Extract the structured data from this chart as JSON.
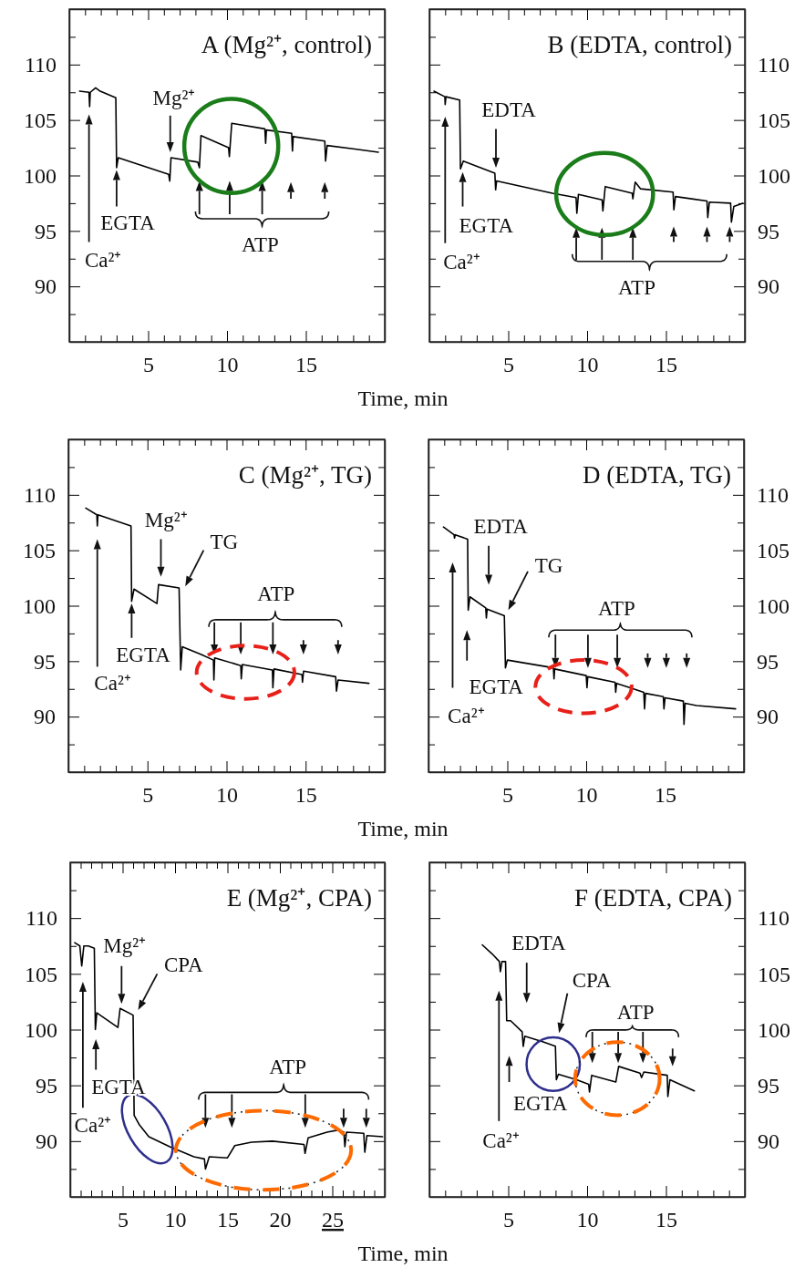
{
  "chart_data": [
    {
      "type": "line",
      "title": "A (Mg²⁺, control)",
      "xlabel": "Time, min",
      "xlim": [
        0,
        20
      ],
      "ylim": [
        85,
        115
      ],
      "xticks": [
        {
          "value": 1,
          "label": null
        },
        {
          "value": 2,
          "label": null
        },
        {
          "value": 3,
          "label": null
        },
        {
          "value": 4,
          "label": null
        },
        5,
        {
          "value": 6,
          "label": null
        },
        {
          "value": 7,
          "label": null
        },
        {
          "value": 8,
          "label": null
        },
        {
          "value": 9,
          "label": null
        },
        10,
        {
          "value": 11,
          "label": null
        },
        {
          "value": 12,
          "label": null
        },
        {
          "value": 13,
          "label": null
        },
        {
          "value": 14,
          "label": null
        },
        15,
        {
          "value": 16,
          "label": null
        },
        {
          "value": 17,
          "label": null
        },
        {
          "value": 18,
          "label": null
        },
        {
          "value": 19,
          "label": null
        }
      ],
      "yticks": [
        {
          "value": 87.5,
          "label": null
        },
        90,
        {
          "value": 92.5,
          "label": null
        },
        95,
        {
          "value": 97.5,
          "label": null
        },
        100,
        {
          "value": 102.5,
          "label": null
        },
        105,
        {
          "value": 107.5,
          "label": null
        },
        110,
        {
          "value": 112.5,
          "label": null
        }
      ],
      "series": [
        {
          "color": "#000000",
          "x": [
            0.65,
            1.25,
            1.29,
            1.33,
            1.67,
            1.96,
            2.95,
            3.0,
            3.1,
            6.3,
            6.37,
            6.45,
            8.15,
            8.25,
            8.35,
            10.1,
            10.15,
            10.3,
            12.4,
            12.45,
            12.5,
            14.1,
            14.15,
            14.2,
            16.2,
            16.25,
            16.35,
            18,
            19.6
          ],
          "values": [
            107.6,
            107.5,
            106.2,
            107.5,
            107.9,
            107.6,
            107.0,
            100.7,
            101.6,
            100.1,
            99.5,
            101.6,
            101.2,
            100.7,
            103.6,
            102.5,
            101.7,
            104.7,
            104.2,
            102.9,
            104.1,
            103.8,
            102.2,
            103.5,
            103.1,
            101.3,
            102.7,
            102.4,
            102.1
          ]
        }
      ],
      "annotations": [
        "Ca²⁺",
        "EGTA",
        "Mg²⁺",
        "ATP"
      ]
    },
    {
      "type": "line",
      "title": "B (EDTA, control)",
      "xlim": [
        0,
        20
      ],
      "ylim": [
        85,
        115
      ],
      "xticks": [
        {
          "value": 1,
          "label": null
        },
        {
          "value": 2,
          "label": null
        },
        {
          "value": 3,
          "label": null
        },
        {
          "value": 4,
          "label": null
        },
        5,
        {
          "value": 6,
          "label": null
        },
        {
          "value": 7,
          "label": null
        },
        {
          "value": 8,
          "label": null
        },
        {
          "value": 9,
          "label": null
        },
        10,
        {
          "value": 11,
          "label": null
        },
        {
          "value": 12,
          "label": null
        },
        {
          "value": 13,
          "label": null
        },
        {
          "value": 14,
          "label": null
        },
        15,
        {
          "value": 16,
          "label": null
        },
        {
          "value": 17,
          "label": null
        },
        {
          "value": 18,
          "label": null
        },
        {
          "value": 19,
          "label": null
        }
      ],
      "yticks": [
        {
          "value": 87.5,
          "label": null
        },
        90,
        {
          "value": 92.5,
          "label": null
        },
        95,
        {
          "value": 97.5,
          "label": null
        },
        100,
        {
          "value": 102.5,
          "label": null
        },
        105,
        {
          "value": 107.5,
          "label": null
        },
        110,
        {
          "value": 112.5,
          "label": null
        }
      ],
      "series": [
        {
          "color": "#000000",
          "x": [
            0.29,
            0.98,
            1.0,
            1.05,
            1.92,
            1.97,
            2.15,
            4.15,
            4.2,
            4.26,
            7.8,
            9.3,
            9.35,
            9.45,
            10.95,
            11.0,
            11.15,
            12.86,
            12.9,
            13.05,
            13.38,
            15.45,
            15.5,
            15.6,
            17.6,
            17.65,
            17.75,
            19.1,
            19.15,
            19.3,
            19.87
          ],
          "values": [
            107.6,
            107.1,
            106.4,
            107.1,
            106.8,
            100.6,
            101.3,
            100.2,
            98.7,
            99.5,
            98.4,
            98.0,
            96.6,
            98.3,
            97.8,
            96.8,
            99.0,
            98.4,
            97.9,
            99.4,
            98.8,
            98.5,
            96.9,
            98.1,
            97.7,
            96.2,
            97.6,
            97.5,
            95.8,
            97.2,
            97.5
          ]
        }
      ],
      "annotations": [
        "Ca²⁺",
        "EGTA",
        "EDTA",
        "ATP"
      ]
    },
    {
      "type": "line",
      "title": "C (Mg²⁺, TG)",
      "xlabel": "Time, min",
      "xlim": [
        0,
        20
      ],
      "ylim": [
        85,
        115
      ],
      "xticks": [
        {
          "value": 1,
          "label": null
        },
        {
          "value": 2,
          "label": null
        },
        {
          "value": 3,
          "label": null
        },
        {
          "value": 4,
          "label": null
        },
        5,
        {
          "value": 6,
          "label": null
        },
        {
          "value": 7,
          "label": null
        },
        {
          "value": 8,
          "label": null
        },
        {
          "value": 9,
          "label": null
        },
        10,
        {
          "value": 11,
          "label": null
        },
        {
          "value": 12,
          "label": null
        },
        {
          "value": 13,
          "label": null
        },
        {
          "value": 14,
          "label": null
        },
        15,
        {
          "value": 16,
          "label": null
        },
        {
          "value": 17,
          "label": null
        },
        {
          "value": 18,
          "label": null
        },
        {
          "value": 19,
          "label": null
        }
      ],
      "yticks": [
        {
          "value": 87.5,
          "label": null
        },
        90,
        {
          "value": 92.5,
          "label": null
        },
        95,
        {
          "value": 97.5,
          "label": null
        },
        100,
        {
          "value": 102.5,
          "label": null
        },
        105,
        {
          "value": 107.5,
          "label": null
        },
        110,
        {
          "value": 112.5,
          "label": null
        }
      ],
      "series": [
        {
          "color": "#000000",
          "x": [
            1.1,
            1.8,
            1.83,
            1.87,
            3.96,
            4.0,
            4.15,
            5.6,
            5.7,
            7.0,
            7.1,
            7.2,
            8.4,
            9.17,
            9.2,
            9.25,
            10.9,
            10.93,
            11.0,
            12.9,
            12.93,
            13.0,
            14.77,
            14.8,
            14.87,
            16.9,
            16.95,
            17.05,
            19.0
          ],
          "values": [
            108.8,
            108.2,
            107.2,
            108.2,
            107.2,
            100.4,
            101.5,
            100.2,
            101.9,
            101.6,
            94.2,
            96.3,
            95.6,
            95.1,
            93.3,
            95.3,
            94.6,
            93.4,
            94.7,
            94.2,
            92.6,
            94.3,
            93.8,
            93.1,
            94.1,
            93.6,
            92.3,
            93.3,
            93.0
          ]
        }
      ],
      "annotations": [
        "Ca²⁺",
        "EGTA",
        "Mg²⁺",
        "TG",
        "ATP"
      ]
    },
    {
      "type": "line",
      "title": "D (EDTA, TG)",
      "xlim": [
        0,
        20
      ],
      "ylim": [
        85,
        115
      ],
      "xticks": [
        {
          "value": 1,
          "label": null
        },
        {
          "value": 2,
          "label": null
        },
        {
          "value": 3,
          "label": null
        },
        {
          "value": 4,
          "label": null
        },
        5,
        {
          "value": 6,
          "label": null
        },
        {
          "value": 7,
          "label": null
        },
        {
          "value": 8,
          "label": null
        },
        {
          "value": 9,
          "label": null
        },
        10,
        {
          "value": 11,
          "label": null
        },
        {
          "value": 12,
          "label": null
        },
        {
          "value": 13,
          "label": null
        },
        {
          "value": 14,
          "label": null
        },
        15,
        {
          "value": 16,
          "label": null
        },
        {
          "value": 17,
          "label": null
        },
        {
          "value": 18,
          "label": null
        },
        {
          "value": 19,
          "label": null
        }
      ],
      "yticks": [
        {
          "value": 87.5,
          "label": null
        },
        90,
        {
          "value": 92.5,
          "label": null
        },
        95,
        {
          "value": 97.5,
          "label": null
        },
        100,
        {
          "value": 102.5,
          "label": null
        },
        105,
        {
          "value": 107.5,
          "label": null
        },
        110,
        {
          "value": 112.5,
          "label": null
        }
      ],
      "series": [
        {
          "color": "#000000",
          "x": [
            0.95,
            1.62,
            1.65,
            1.7,
            2.48,
            2.52,
            2.63,
            3.63,
            3.67,
            3.72,
            4.81,
            4.88,
            5.0,
            7.92,
            7.96,
            8.0,
            10.0,
            10.05,
            10.1,
            11.83,
            11.87,
            11.93,
            12.79,
            13.65,
            13.7,
            13.76,
            14.89,
            14.93,
            15.0,
            16.16,
            16.2,
            16.27,
            17.0,
            19.47
          ],
          "values": [
            107.1,
            106.4,
            106.1,
            106.4,
            106.0,
            99.6,
            100.8,
            99.8,
            98.9,
            99.7,
            99.1,
            94.4,
            95.1,
            94.4,
            93.4,
            94.3,
            93.7,
            92.6,
            93.6,
            93.1,
            92.2,
            93.0,
            92.6,
            92.2,
            90.7,
            92.1,
            91.8,
            90.7,
            91.7,
            91.4,
            89.3,
            91.2,
            91.0,
            90.7
          ]
        }
      ],
      "annotations": [
        "Ca²⁺",
        "EGTA",
        "EDTA",
        "TG",
        "ATP"
      ]
    },
    {
      "type": "line",
      "title": "E (Mg²⁺, CPA)",
      "xlabel": "Time, min",
      "xlim": [
        0,
        30
      ],
      "ylim": [
        85,
        115
      ],
      "xticks": [
        {
          "value": 1,
          "label": null
        },
        {
          "value": 2,
          "label": null
        },
        {
          "value": 3,
          "label": null
        },
        {
          "value": 4,
          "label": null
        },
        5,
        {
          "value": 6,
          "label": null
        },
        {
          "value": 7,
          "label": null
        },
        {
          "value": 8,
          "label": null
        },
        {
          "value": 9,
          "label": null
        },
        10,
        {
          "value": 11,
          "label": null
        },
        {
          "value": 12,
          "label": null
        },
        {
          "value": 13,
          "label": null
        },
        {
          "value": 14,
          "label": null
        },
        15,
        {
          "value": 16,
          "label": null
        },
        {
          "value": 17,
          "label": null
        },
        {
          "value": 18,
          "label": null
        },
        {
          "value": 19,
          "label": null
        },
        20,
        {
          "value": 21,
          "label": null
        },
        {
          "value": 22,
          "label": null
        },
        {
          "value": 23,
          "label": null
        },
        {
          "value": 24,
          "label": null
        },
        25,
        {
          "value": 26,
          "label": null
        },
        {
          "value": 27,
          "label": null
        },
        {
          "value": 28,
          "label": null
        },
        {
          "value": 29,
          "label": null
        }
      ],
      "yticks": [
        {
          "value": 87.5,
          "label": null
        },
        90,
        {
          "value": 92.5,
          "label": null
        },
        95,
        {
          "value": 97.5,
          "label": null
        },
        100,
        {
          "value": 102.5,
          "label": null
        },
        105,
        {
          "value": 107.5,
          "label": null
        },
        110,
        {
          "value": 112.5,
          "label": null
        }
      ],
      "series": [
        {
          "color": "#000000",
          "x": [
            0.43,
            0.92,
            1.1,
            1.3,
            1.73,
            2.3,
            2.4,
            2.54,
            4.55,
            4.76,
            6.0,
            6.1,
            6.57,
            7.5,
            9.5,
            11.8,
            12.8,
            12.9,
            13.26,
            15.0,
            15.7,
            17.3,
            19.3,
            22.3,
            22.4,
            22.7,
            24.5,
            25.6,
            26.1,
            26.2,
            26.35,
            28.0,
            28.1,
            28.3,
            29.8
          ],
          "values": [
            107.8,
            107.5,
            105.7,
            107.5,
            107.5,
            107.3,
            100.0,
            101.5,
            100.2,
            101.9,
            101.3,
            92.3,
            91.5,
            90.4,
            89.5,
            88.6,
            88.4,
            87.5,
            88.6,
            88.5,
            89.6,
            89.9,
            90.0,
            89.7,
            88.9,
            90.3,
            90.8,
            91.0,
            90.8,
            89.5,
            90.8,
            90.7,
            89.0,
            90.5,
            90.4
          ]
        }
      ],
      "annotations": [
        "Ca²⁺",
        "EGTA",
        "Mg²⁺",
        "CPA",
        "ATP"
      ]
    },
    {
      "type": "line",
      "title": "F (EDTA, CPA)",
      "xlim": [
        0,
        20
      ],
      "ylim": [
        85,
        115
      ],
      "xticks": [
        {
          "value": 1,
          "label": null
        },
        {
          "value": 2,
          "label": null
        },
        {
          "value": 3,
          "label": null
        },
        {
          "value": 4,
          "label": null
        },
        5,
        {
          "value": 6,
          "label": null
        },
        {
          "value": 7,
          "label": null
        },
        {
          "value": 8,
          "label": null
        },
        {
          "value": 9,
          "label": null
        },
        10,
        {
          "value": 11,
          "label": null
        },
        {
          "value": 12,
          "label": null
        },
        {
          "value": 13,
          "label": null
        },
        {
          "value": 14,
          "label": null
        },
        15,
        {
          "value": 16,
          "label": null
        },
        {
          "value": 17,
          "label": null
        },
        {
          "value": 18,
          "label": null
        },
        {
          "value": 19,
          "label": null
        }
      ],
      "yticks": [
        {
          "value": 87.5,
          "label": null
        },
        90,
        {
          "value": 92.5,
          "label": null
        },
        95,
        {
          "value": 97.5,
          "label": null
        },
        100,
        {
          "value": 102.5,
          "label": null
        },
        105,
        {
          "value": 107.5,
          "label": null
        },
        110,
        {
          "value": 112.5,
          "label": null
        }
      ],
      "series": [
        {
          "color": "#000000",
          "x": [
            3.35,
            3.97,
            4.44,
            4.5,
            4.6,
            4.83,
            4.9,
            5.15,
            5.88,
            5.95,
            6.05,
            7.22,
            7.99,
            8.05,
            8.18,
            9.33,
            10.1,
            10.15,
            10.29,
            11.82,
            12.0,
            13.35,
            13.45,
            13.6,
            15.08,
            15.12,
            15.25,
            16.8
          ],
          "values": [
            107.6,
            106.8,
            106.1,
            105.2,
            106.1,
            106.1,
            100.8,
            100.8,
            99.8,
            98.5,
            99.4,
            98.9,
            98.5,
            95.5,
            96.0,
            95.5,
            95.1,
            94.4,
            95.9,
            95.3,
            96.7,
            96.1,
            95.7,
            96.2,
            95.9,
            94.0,
            95.5,
            94.5
          ]
        }
      ],
      "annotations": [
        "Ca²⁺",
        "EGTA",
        "EDTA",
        "CPA",
        "ATP"
      ]
    }
  ]
}
